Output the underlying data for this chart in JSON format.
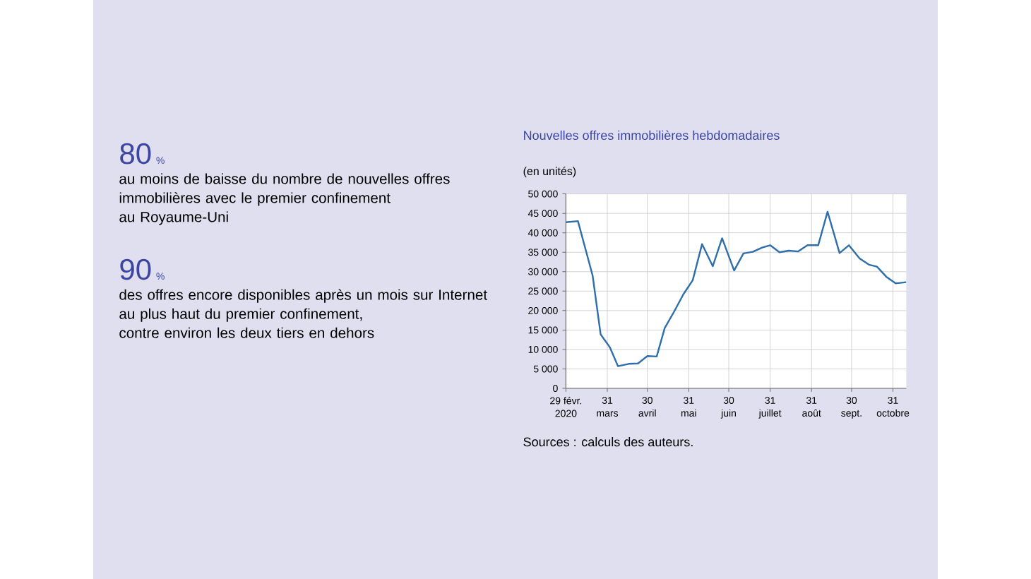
{
  "chart_data": [
    {
      "type": "other",
      "annotations": [
        "80",
        "%",
        "au moins de baisse du nombre de nouvelles offres\nimmobilières avec le premier confinement\nau Royaume-Uni",
        "90",
        "%",
        "des offres encore disponibles après un mois sur Internet\nau plus haut du premier confinement,\ncontre environ les deux tiers en dehors"
      ]
    },
    {
      "type": "line",
      "title": "Nouvelles offres immobilières hebdomadaires",
      "ylabel": "(en unités)",
      "x": [
        "2020-02-29",
        "2020-03-09",
        "2020-03-20",
        "2020-03-26",
        "2020-04-02",
        "2020-04-08",
        "2020-04-16",
        "2020-04-23",
        "2020-04-30",
        "2020-05-07",
        "2020-05-13",
        "2020-05-20",
        "2020-05-27",
        "2020-06-03",
        "2020-06-10",
        "2020-06-18",
        "2020-06-25",
        "2020-07-04",
        "2020-07-11",
        "2020-07-18",
        "2020-07-25",
        "2020-07-31",
        "2020-08-07",
        "2020-08-14",
        "2020-08-21",
        "2020-08-28",
        "2020-09-05",
        "2020-09-12",
        "2020-09-21",
        "2020-09-28",
        "2020-10-06",
        "2020-10-13",
        "2020-10-19",
        "2020-10-26",
        "2020-11-02",
        "2020-11-10"
      ],
      "values": [
        42700,
        43000,
        29000,
        13900,
        10500,
        5700,
        6300,
        6400,
        8300,
        8200,
        15500,
        19700,
        24200,
        27800,
        37100,
        31400,
        38600,
        30300,
        34700,
        35100,
        36200,
        36800,
        35000,
        35400,
        35200,
        36800,
        36800,
        45400,
        34800,
        36800,
        33400,
        31800,
        31300,
        28700,
        27000,
        27300
      ],
      "color": "#2e6eaa",
      "xlim": [
        "2020-02-29",
        "2020-11-10"
      ],
      "xticks": [
        {
          "value": "2020-02-29",
          "label": "29 févr.\n2020"
        },
        {
          "value": "2020-03-31",
          "label": "31\nmars"
        },
        {
          "value": "2020-04-30",
          "label": "30\navril"
        },
        {
          "value": "2020-05-31",
          "label": "31\nmai"
        },
        {
          "value": "2020-06-30",
          "label": "30\njuin"
        },
        {
          "value": "2020-07-31",
          "label": "31\njuillet"
        },
        {
          "value": "2020-08-31",
          "label": "31\naoût"
        },
        {
          "value": "2020-09-30",
          "label": "30\nsept."
        },
        {
          "value": "2020-10-31",
          "label": "31\noctobre"
        }
      ],
      "ylim": [
        0,
        50000
      ],
      "yticks": [
        0,
        {
          "value": 5000,
          "label": "5 000"
        },
        {
          "value": 10000,
          "label": "10 000"
        },
        {
          "value": 15000,
          "label": "15 000"
        },
        {
          "value": 20000,
          "label": "20 000"
        },
        {
          "value": 25000,
          "label": "25 000"
        },
        {
          "value": 30000,
          "label": "30 000"
        },
        {
          "value": 35000,
          "label": "35 000"
        },
        {
          "value": 40000,
          "label": "40 000"
        },
        {
          "value": 45000,
          "label": "45 000"
        },
        {
          "value": 50000,
          "label": "50 000"
        }
      ],
      "grid": true,
      "annotations": [
        "Sources : calculs des auteurs."
      ]
    }
  ]
}
